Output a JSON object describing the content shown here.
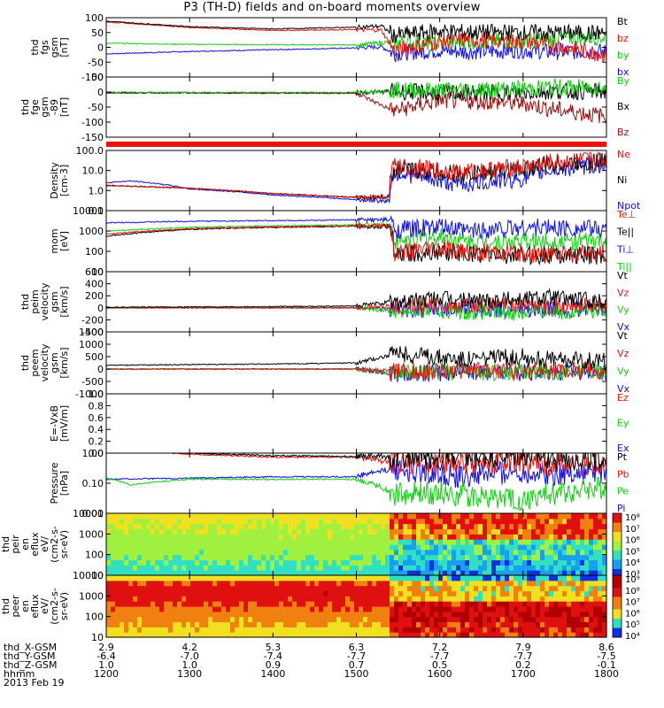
{
  "title": "P3 (TH-D) fields and on-board moments overview",
  "date_label": "2013 Feb 19",
  "colors": {
    "red": "#e8140c",
    "green": "#10d010",
    "blue": "#1010e0",
    "black": "#000000"
  },
  "chart_data": [
    {
      "type": "line",
      "ylabel": [
        "thd",
        "fgs",
        "gsm",
        "[nT]"
      ],
      "ylim": [
        -100,
        100
      ],
      "yticks": [
        "100",
        "50",
        "0",
        "-50",
        "-100"
      ],
      "legend": [
        {
          "name": "Bt",
          "color": "#000000"
        },
        {
          "name": "bz",
          "color": "#e8140c"
        },
        {
          "name": "by",
          "color": "#10d010"
        },
        {
          "name": "bx",
          "color": "#1010e0"
        }
      ],
      "series": [
        {
          "name": "Bt",
          "x": [
            1200,
            1300,
            1400,
            1500,
            1530,
            1545,
            1600,
            1630,
            1700,
            1730,
            1800
          ],
          "y": [
            88,
            70,
            62,
            68,
            72,
            40,
            55,
            52,
            50,
            50,
            48
          ]
        },
        {
          "name": "bz",
          "x": [
            1200,
            1300,
            1400,
            1500,
            1530,
            1545,
            1600,
            1630,
            1700,
            1730,
            1800
          ],
          "y": [
            86,
            67,
            57,
            60,
            58,
            -10,
            20,
            25,
            20,
            10,
            -25
          ]
        },
        {
          "name": "by",
          "x": [
            1200,
            1300,
            1400,
            1500,
            1530,
            1545,
            1600,
            1630,
            1700,
            1730,
            1800
          ],
          "y": [
            14,
            10,
            9,
            8,
            15,
            20,
            10,
            20,
            20,
            30,
            35
          ]
        },
        {
          "name": "bx",
          "x": [
            1200,
            1300,
            1400,
            1500,
            1530,
            1545,
            1600,
            1630,
            1700,
            1730,
            1800
          ],
          "y": [
            -22,
            -14,
            -8,
            -2,
            2,
            -20,
            -10,
            -15,
            -10,
            -15,
            -15
          ]
        }
      ]
    },
    {
      "type": "line",
      "ylabel": [
        "thd",
        "fge",
        "gsm",
        "-89",
        "[nT]"
      ],
      "ylim": [
        -170,
        60
      ],
      "yticks": [
        "50",
        "0",
        "-50",
        "-100",
        "-150"
      ],
      "legend": [
        {
          "name": "By",
          "color": "#10d010"
        },
        {
          "name": "Bx",
          "color": "#000000"
        },
        {
          "name": "Bz",
          "color": "#9a1010"
        }
      ],
      "series": [
        {
          "name": "By",
          "x": [
            1200,
            1300,
            1400,
            1500,
            1545,
            1600,
            1700,
            1730,
            1800
          ],
          "y": [
            2,
            1,
            1,
            1,
            10,
            10,
            15,
            20,
            20
          ]
        },
        {
          "name": "Bx",
          "x": [
            1200,
            1300,
            1400,
            1500,
            1545,
            1600,
            1700,
            1730,
            1800
          ],
          "y": [
            0,
            0,
            0,
            0,
            5,
            0,
            0,
            5,
            5
          ]
        },
        {
          "name": "Bz",
          "x": [
            1200,
            1300,
            1400,
            1500,
            1545,
            1600,
            1700,
            1730,
            1800
          ],
          "y": [
            -1,
            -1,
            -2,
            -2,
            -70,
            -30,
            -40,
            -60,
            -90
          ]
        }
      ]
    },
    {
      "type": "line",
      "ylabel": [
        "Density",
        "[cm-3]"
      ],
      "yscale": "log",
      "ylim": [
        0.1,
        100
      ],
      "yticks": [
        "100.0",
        "10.0",
        "1.0",
        "0.1"
      ],
      "legend": [
        {
          "name": "Ne",
          "color": "#e8140c"
        },
        {
          "name": "Ni",
          "color": "#000000"
        },
        {
          "name": "Npot",
          "color": "#1010e0"
        }
      ],
      "series": [
        {
          "name": "Ne",
          "x": [
            1200,
            1300,
            1400,
            1500,
            1540,
            1545,
            1600,
            1630,
            1700,
            1730,
            1800
          ],
          "y": [
            1.8,
            1.3,
            0.7,
            0.45,
            0.5,
            15,
            10,
            8,
            15,
            25,
            35
          ]
        },
        {
          "name": "Ni",
          "x": [
            1200,
            1300,
            1400,
            1500,
            1540,
            1545,
            1600,
            1630,
            1700,
            1730,
            1800
          ],
          "y": [
            1.8,
            1.3,
            0.7,
            0.45,
            0.5,
            12,
            8,
            6,
            12,
            20,
            30
          ]
        },
        {
          "name": "Npot",
          "x": [
            1200,
            1230,
            1300,
            1400,
            1500,
            1540,
            1545,
            1600,
            1630,
            1700,
            1730,
            1800
          ],
          "y": [
            2.5,
            3,
            1.2,
            0.6,
            0.35,
            0.3,
            8,
            3,
            2,
            4,
            10,
            20
          ]
        }
      ]
    },
    {
      "type": "line",
      "ylabel": [
        "mom",
        "[eV]"
      ],
      "yscale": "log",
      "ylim": [
        10,
        10000
      ],
      "yticks": [
        "10000",
        "1000",
        "100",
        "10"
      ],
      "legend": [
        {
          "name": "Te⊥",
          "color": "#e8140c"
        },
        {
          "name": "Te||",
          "color": "#000000"
        },
        {
          "name": "Ti⊥",
          "color": "#1010e0"
        },
        {
          "name": "Ti||",
          "color": "#10d010"
        }
      ],
      "series": [
        {
          "name": "Te⊥",
          "x": [
            1200,
            1300,
            1400,
            1500,
            1540,
            1545,
            1600,
            1630,
            1700,
            1730,
            1800
          ],
          "y": [
            700,
            1300,
            1600,
            1800,
            1800,
            80,
            120,
            90,
            70,
            80,
            70
          ]
        },
        {
          "name": "Te||",
          "x": [
            1200,
            1300,
            1400,
            1500,
            1540,
            1545,
            1600,
            1630,
            1700,
            1730,
            1800
          ],
          "y": [
            550,
            1200,
            1500,
            1700,
            1700,
            60,
            100,
            80,
            60,
            70,
            60
          ]
        },
        {
          "name": "Ti⊥",
          "x": [
            1200,
            1300,
            1400,
            1500,
            1540,
            1545,
            1600,
            1630,
            1700,
            1730,
            1800
          ],
          "y": [
            2500,
            3000,
            3200,
            3500,
            3500,
            1200,
            1500,
            1000,
            1500,
            1500,
            1200
          ]
        },
        {
          "name": "Ti||",
          "x": [
            1200,
            1300,
            1400,
            1500,
            1540,
            1545,
            1600,
            1630,
            1700,
            1730,
            1800
          ],
          "y": [
            1000,
            1500,
            1800,
            2000,
            2000,
            300,
            500,
            300,
            300,
            300,
            300
          ]
        }
      ]
    },
    {
      "type": "line",
      "ylabel": [
        "thd",
        "peim",
        "velocity",
        "gsm",
        "[km/s]"
      ],
      "ylim": [
        -400,
        600
      ],
      "yticks": [
        "600",
        "400",
        "200",
        "0",
        "-200",
        "-400"
      ],
      "legend": [
        {
          "name": "Vt",
          "color": "#000000"
        },
        {
          "name": "Vz",
          "color": "#e8140c"
        },
        {
          "name": "Vy",
          "color": "#10d010"
        },
        {
          "name": "Vx",
          "color": "#1010e0"
        }
      ],
      "series": [
        {
          "name": "Vt",
          "x": [
            1200,
            1300,
            1400,
            1500,
            1545,
            1600,
            1630,
            1700,
            1730,
            1800
          ],
          "y": [
            10,
            15,
            20,
            30,
            100,
            150,
            120,
            150,
            180,
            100
          ]
        },
        {
          "name": "Vz",
          "x": [
            1200,
            1300,
            1400,
            1500,
            1545,
            1600,
            1630,
            1700,
            1730,
            1800
          ],
          "y": [
            0,
            0,
            0,
            0,
            30,
            50,
            40,
            60,
            40,
            30
          ]
        },
        {
          "name": "Vy",
          "x": [
            1200,
            1300,
            1400,
            1500,
            1545,
            1600,
            1630,
            1700,
            1730,
            1800
          ],
          "y": [
            0,
            0,
            0,
            0,
            -50,
            -40,
            -60,
            -80,
            -50,
            -60
          ]
        },
        {
          "name": "Vx",
          "x": [
            1200,
            1300,
            1400,
            1500,
            1545,
            1600,
            1630,
            1700,
            1730,
            1800
          ],
          "y": [
            0,
            0,
            0,
            0,
            -20,
            -30,
            -20,
            -40,
            -30,
            -20
          ]
        }
      ]
    },
    {
      "type": "line",
      "ylabel": [
        "thd",
        "peem",
        "velocity",
        "gsm",
        "[km/s]"
      ],
      "ylim": [
        -1000,
        1500
      ],
      "yticks": [
        "1500",
        "1000",
        "500",
        "0",
        "-500",
        "-1000"
      ],
      "legend": [
        {
          "name": "Vt",
          "color": "#000000"
        },
        {
          "name": "Vz",
          "color": "#e8140c"
        },
        {
          "name": "Vy",
          "color": "#10d010"
        },
        {
          "name": "Vx",
          "color": "#1010e0"
        }
      ],
      "series": [
        {
          "name": "Vt",
          "x": [
            1200,
            1300,
            1400,
            1500,
            1545,
            1600,
            1630,
            1700,
            1730,
            1800
          ],
          "y": [
            150,
            180,
            200,
            250,
            600,
            500,
            400,
            500,
            400,
            300
          ]
        },
        {
          "name": "Vz",
          "x": [
            1200,
            1300,
            1400,
            1500,
            1545,
            1600,
            1630,
            1700,
            1730,
            1800
          ],
          "y": [
            0,
            0,
            0,
            0,
            -100,
            -100,
            -50,
            -100,
            -50,
            -50
          ]
        },
        {
          "name": "Vy",
          "x": [
            1200,
            1300,
            1400,
            1500,
            1545,
            1600,
            1630,
            1700,
            1730,
            1800
          ],
          "y": [
            0,
            0,
            0,
            0,
            -150,
            -100,
            -100,
            -150,
            -100,
            -100
          ]
        },
        {
          "name": "Vx",
          "x": [
            1200,
            1300,
            1400,
            1500,
            1545,
            1600,
            1630,
            1700,
            1730,
            1800
          ],
          "y": [
            0,
            0,
            0,
            0,
            -200,
            -150,
            -100,
            -150,
            -100,
            -100
          ]
        }
      ]
    },
    {
      "type": "line",
      "ylabel": [
        "E=-VxB",
        "[mV/m]"
      ],
      "ylim": [
        0,
        1
      ],
      "yticks": [
        "1.0",
        "0.8",
        "0.6",
        "0.4",
        "0.2",
        "0.0"
      ],
      "legend": [
        {
          "name": "Ez",
          "color": "#e8140c"
        },
        {
          "name": "Ey",
          "color": "#10d010"
        },
        {
          "name": "Ex",
          "color": "#1010e0"
        }
      ],
      "series": []
    },
    {
      "type": "line",
      "ylabel": [
        "Pressure",
        "[nPa]"
      ],
      "yscale": "log",
      "ylim": [
        0.01,
        2
      ],
      "yticks": [
        "1.00",
        "0.10",
        "0.01"
      ],
      "legend": [
        {
          "name": "Pt",
          "color": "#000000"
        },
        {
          "name": "Pb",
          "color": "#e8140c"
        },
        {
          "name": "Pe",
          "color": "#10d010"
        },
        {
          "name": "Pi",
          "color": "#1010e0"
        }
      ],
      "series": [
        {
          "name": "Pt",
          "x": [
            1200,
            1300,
            1400,
            1500,
            1545,
            1600,
            1630,
            1700,
            1730,
            1800
          ],
          "y": [
            3,
            2,
            1.6,
            1.5,
            1.5,
            1.2,
            1.2,
            1.5,
            1.3,
            1.2
          ]
        },
        {
          "name": "Pb",
          "x": [
            1200,
            1300,
            1400,
            1500,
            1545,
            1600,
            1630,
            1700,
            1730,
            1800
          ],
          "y": [
            2.8,
            1.8,
            1.4,
            1.4,
            0.8,
            0.9,
            0.8,
            0.9,
            0.8,
            0.7
          ]
        },
        {
          "name": "Pe",
          "x": [
            1200,
            1230,
            1300,
            1400,
            1500,
            1545,
            1600,
            1630,
            1700,
            1730,
            1800
          ],
          "y": [
            0.22,
            0.12,
            0.2,
            0.2,
            0.2,
            0.05,
            0.06,
            0.05,
            0.03,
            0.05,
            0.1
          ]
        },
        {
          "name": "Pi",
          "x": [
            1200,
            1300,
            1400,
            1500,
            1545,
            1600,
            1630,
            1700,
            1730,
            1800
          ],
          "y": [
            0.2,
            0.22,
            0.25,
            0.25,
            0.5,
            0.3,
            0.25,
            0.4,
            0.3,
            0.4
          ]
        }
      ]
    },
    {
      "type": "heatmap",
      "ylabel": [
        "thd",
        "peir",
        "en",
        "eflux",
        "eV/",
        "(cm2-s-",
        "sr-eV)"
      ],
      "yscale": "log",
      "ylim": [
        10,
        10000
      ],
      "yticks": [
        "10000",
        "1000",
        "100",
        "10"
      ],
      "colorbar": [
        "10⁸",
        "10⁷",
        "10⁶",
        "10⁵",
        "10⁴",
        "10³"
      ]
    },
    {
      "type": "heatmap",
      "ylabel": [
        "thd",
        "peer",
        "en",
        "eflux",
        "eV/",
        "(cm2-s-",
        "sr-eV)"
      ],
      "yscale": "log",
      "ylim": [
        10,
        10000
      ],
      "yticks": [
        "10000",
        "1000",
        "100",
        "10"
      ],
      "colorbar": [
        "10⁹",
        "10⁸",
        "10⁷",
        "10⁶",
        "10⁵",
        "10⁴"
      ]
    }
  ],
  "ephemeris": {
    "row_labels": [
      "thd_X-GSM",
      "thd_Y-GSM",
      "thd_Z-GSM",
      "hhmm"
    ],
    "columns": [
      [
        "2.9",
        "-6.4",
        "1.0",
        "1200"
      ],
      [
        "4.2",
        "-7.0",
        "1.0",
        "1300"
      ],
      [
        "5.3",
        "-7.4",
        "0.9",
        "1400"
      ],
      [
        "6.3",
        "-7.7",
        "0.7",
        "1500"
      ],
      [
        "7.2",
        "-7.7",
        "0.5",
        "1600"
      ],
      [
        "7.9",
        "-7.7",
        "0.2",
        "1700"
      ],
      [
        "8.6",
        "-7.5",
        "-0.1",
        "1800"
      ]
    ]
  }
}
